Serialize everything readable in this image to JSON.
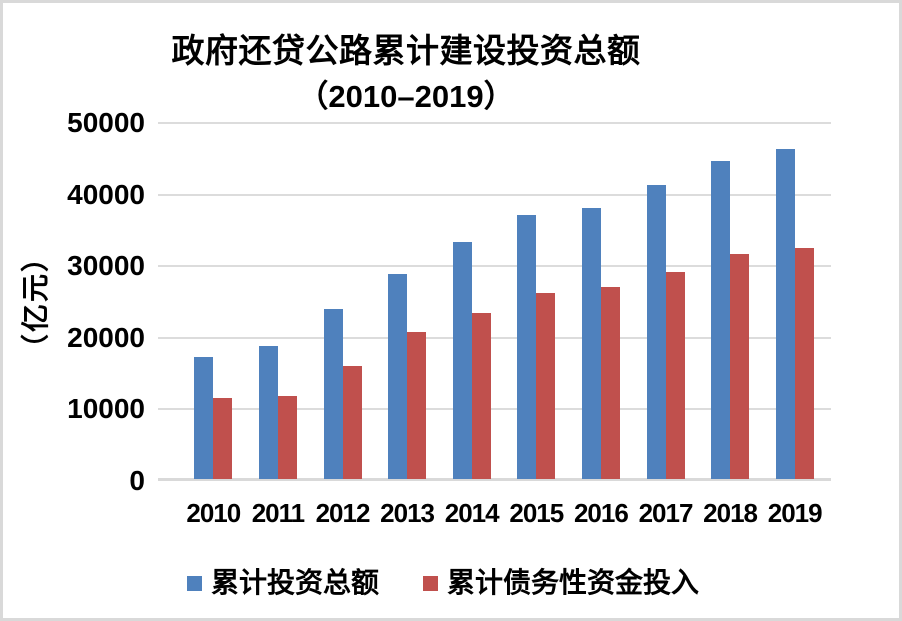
{
  "page": {
    "background": "#ffffff",
    "frame_border_color": "#d9d9d9",
    "gridline_color": "#dcdcdc",
    "axis_line_color": "#d9d9d9",
    "text_color": "#000000"
  },
  "chart_data": {
    "type": "bar",
    "title": "政府还贷公路累计建设投资总额（2010–2019）",
    "title_line1": "政府还贷公路累计建设投资总额",
    "title_line2": "（2010–2019）",
    "ylabel": "（亿元）",
    "xlabel": "",
    "categories": [
      "2010",
      "2011",
      "2012",
      "2013",
      "2014",
      "2015",
      "2016",
      "2017",
      "2018",
      "2019"
    ],
    "series": [
      {
        "name": "累计投资总额",
        "color": "#4f81bd",
        "values": [
          17300,
          18900,
          24050,
          28900,
          33350,
          37200,
          38100,
          41400,
          44750,
          46400
        ]
      },
      {
        "name": "累计债务性资金投入",
        "color": "#c0504d",
        "values": [
          11650,
          11850,
          16050,
          20750,
          23500,
          26250,
          27050,
          29250,
          31750,
          32500
        ]
      }
    ],
    "ylim": [
      0,
      50000
    ],
    "yticks": [
      0,
      10000,
      20000,
      30000,
      40000,
      50000
    ],
    "grid": true,
    "legend_position": "bottom"
  }
}
